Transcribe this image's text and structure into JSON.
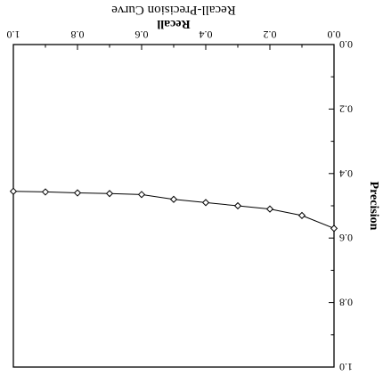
{
  "chart_data": {
    "type": "line",
    "title": "Recall-Precision Curve",
    "xlabel": "Recall",
    "ylabel": "Precision",
    "xlim": [
      0.0,
      1.0
    ],
    "ylim": [
      0.0,
      1.0
    ],
    "orientation": "rotated-180",
    "grid": false,
    "xticks": [
      0.0,
      0.2,
      0.4,
      0.6,
      0.8,
      1.0
    ],
    "yticks": [
      0.0,
      0.2,
      0.4,
      0.6,
      0.8,
      1.0
    ],
    "xtick_labels": [
      "0.0",
      "0.2",
      "0.4",
      "0.6",
      "0.8",
      "1.0"
    ],
    "ytick_labels": [
      "0.0",
      "0.2",
      "0.4",
      "0.6",
      "0.8",
      "1.0"
    ],
    "series": [
      {
        "marker": "diamond",
        "x": [
          0.0,
          0.1,
          0.2,
          0.3,
          0.4,
          0.5,
          0.6,
          0.7,
          0.8,
          0.9,
          1.0
        ],
        "y": [
          0.57,
          0.53,
          0.51,
          0.5,
          0.49,
          0.48,
          0.465,
          0.462,
          0.46,
          0.457,
          0.455
        ]
      }
    ]
  }
}
